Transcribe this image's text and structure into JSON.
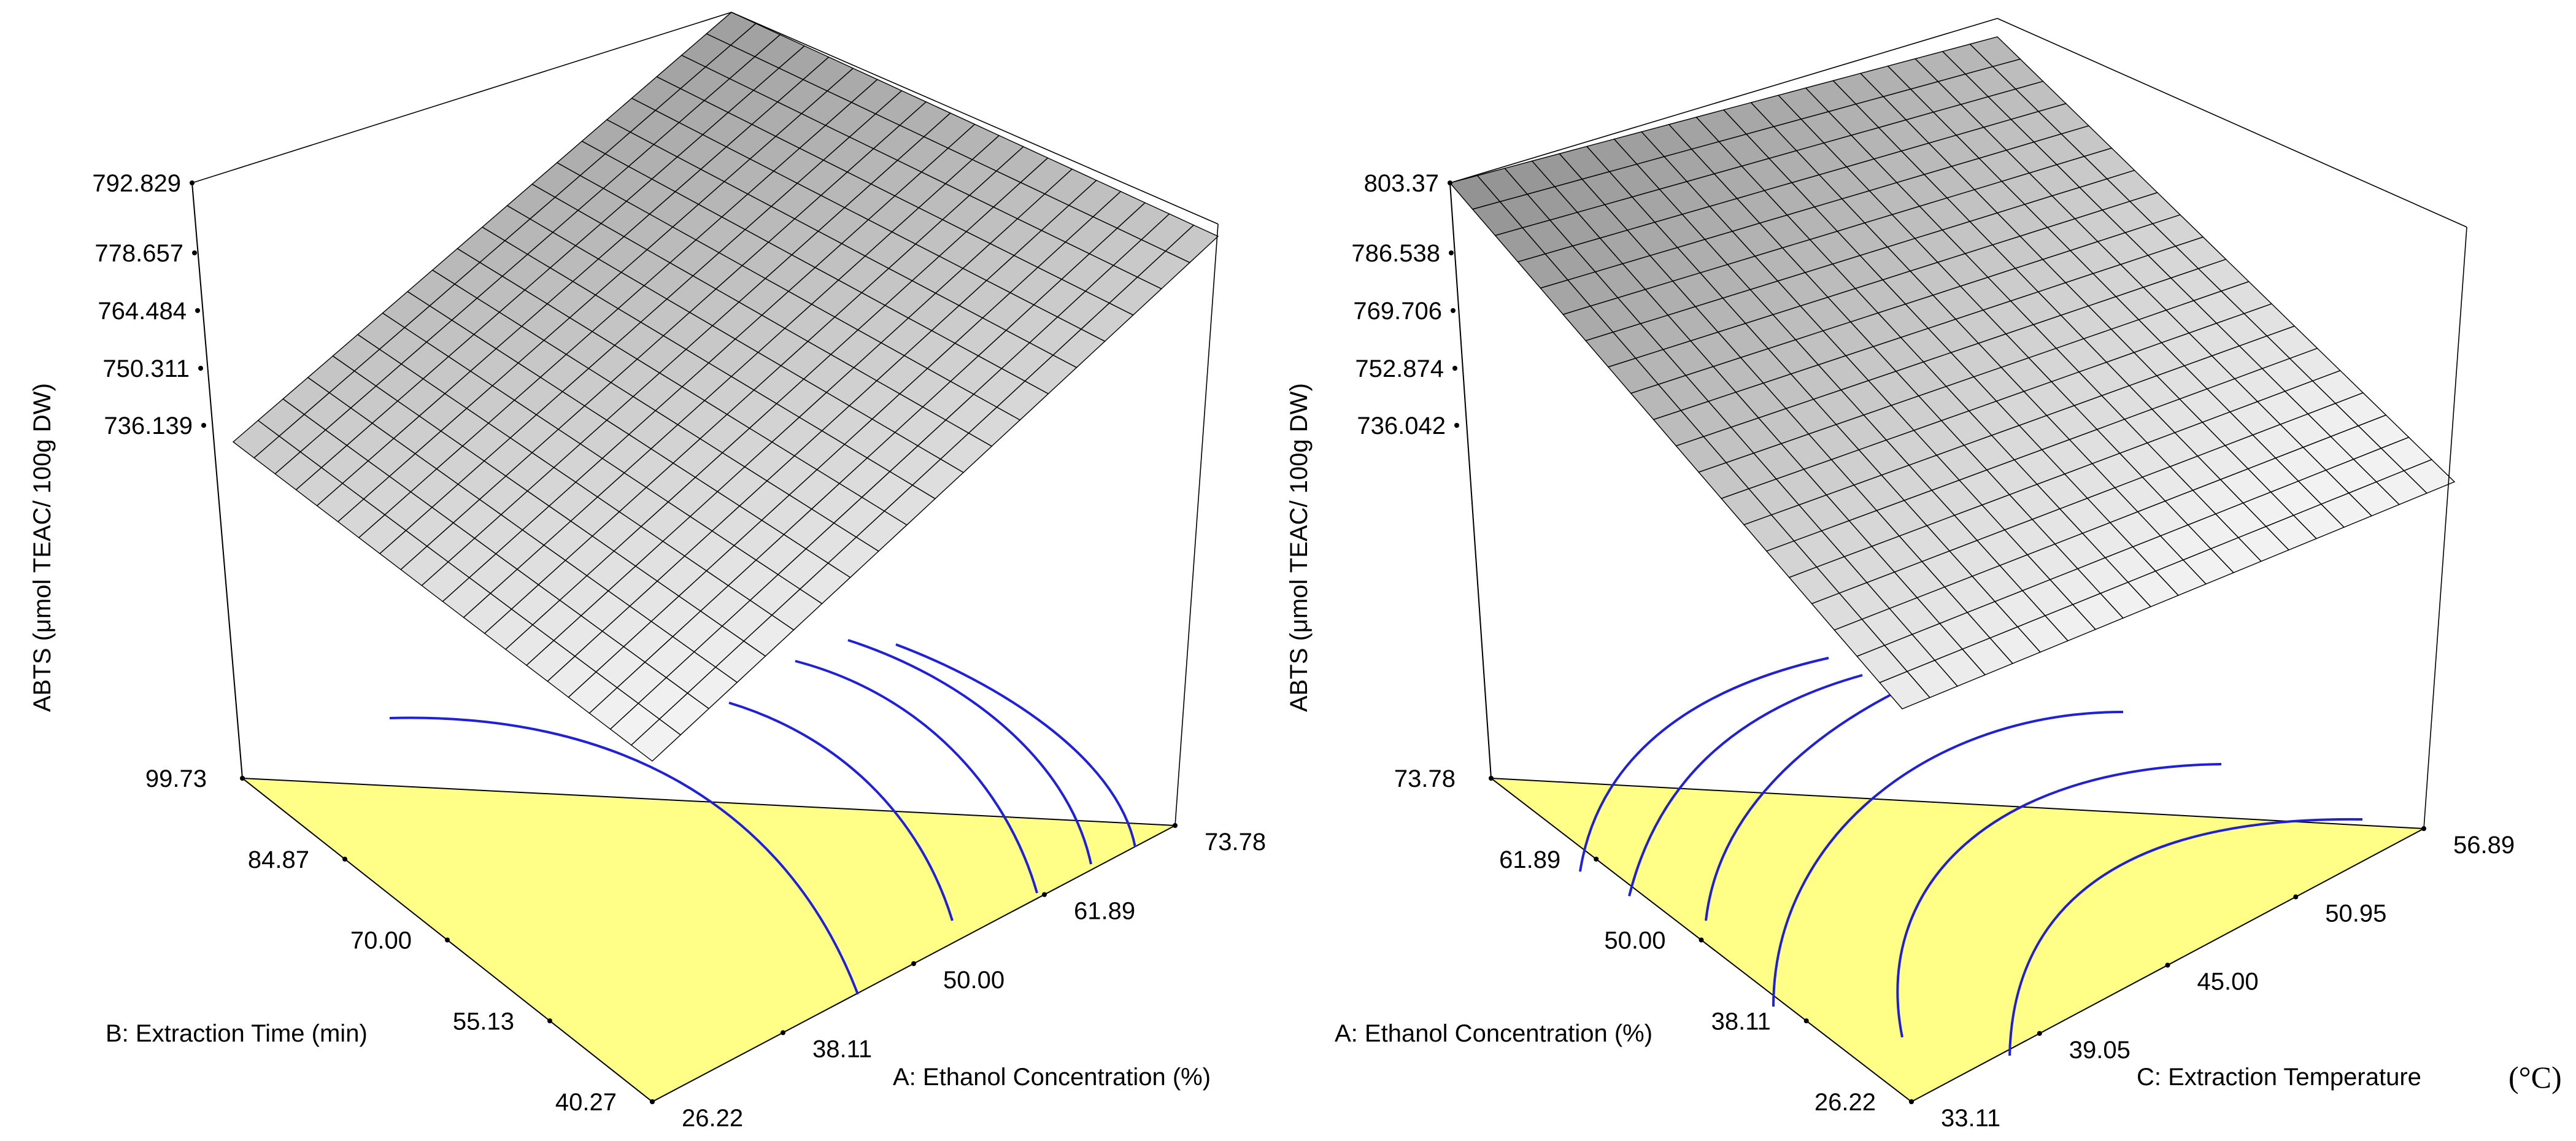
{
  "chart_data": [
    {
      "type": "surface",
      "zlabel": "ABTS (μmol TEAC/ 100g DW)",
      "z_ticks": [
        "792.829",
        "778.657",
        "764.484",
        "750.311",
        "736.139"
      ],
      "x_axis": {
        "label": "A: Ethanol Concentration (%)",
        "ticks": [
          "26.22",
          "38.11",
          "50.00",
          "61.89",
          "73.78"
        ]
      },
      "y_axis": {
        "label": "B: Extraction Time (min)",
        "ticks": [
          "40.27",
          "55.13",
          "70.00",
          "84.87",
          "99.73"
        ]
      },
      "colors": {
        "floor": "#ffff88",
        "contour": "#2020d8",
        "surface_light": "#f2f2f2",
        "surface_dark": "#8a8a8a"
      }
    },
    {
      "type": "surface",
      "zlabel": "ABTS (μmol TEAC/ 100g DW)",
      "z_ticks": [
        "803.37",
        "786.538",
        "769.706",
        "752.874",
        "736.042"
      ],
      "x_axis": {
        "label": "C: Extraction Temperature",
        "unit": "(°C)",
        "ticks": [
          "33.11",
          "39.05",
          "45.00",
          "50.95",
          "56.89"
        ]
      },
      "y_axis": {
        "label": "A: Ethanol Concentration (%)",
        "ticks": [
          "26.22",
          "38.11",
          "50.00",
          "61.89",
          "73.78"
        ]
      },
      "colors": {
        "floor": "#ffff88",
        "contour": "#2020d8",
        "surface_light": "#f2f2f2",
        "surface_dark": "#8a8a8a"
      }
    }
  ]
}
